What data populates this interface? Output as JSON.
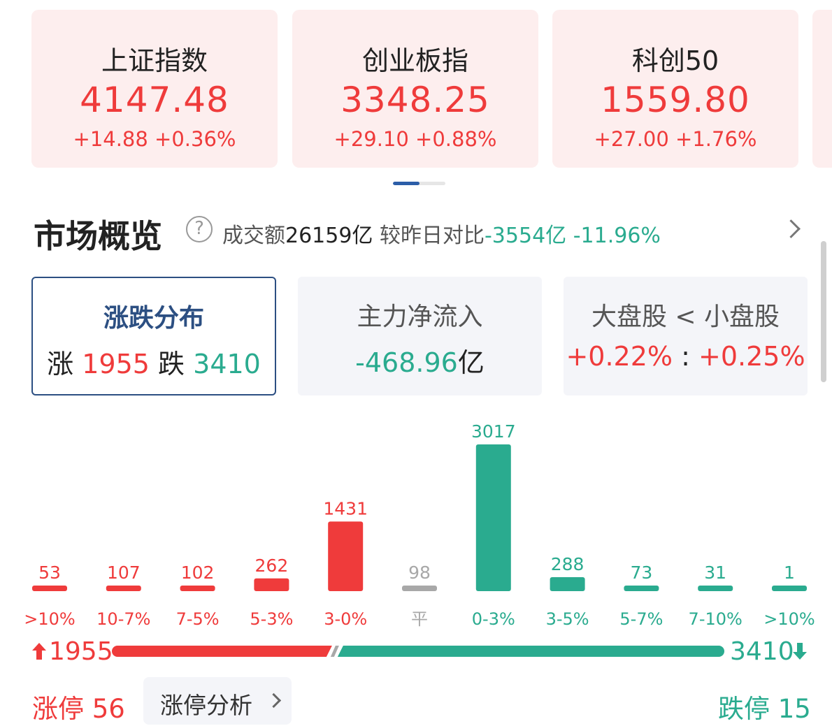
{
  "indices": [
    {
      "name": "上证指数",
      "price": "4147.48",
      "change": "+14.88 +0.36%"
    },
    {
      "name": "创业板指",
      "price": "3348.25",
      "change": "+29.10 +0.88%"
    },
    {
      "name": "科创50",
      "price": "1559.80",
      "change": "+27.00 +1.76%"
    }
  ],
  "overview": {
    "title": "市场概览",
    "help_icon": "?",
    "turnover_label": "成交额",
    "turnover_value": "26159亿",
    "compare_label": "较昨日对比",
    "compare_value": "-3554亿",
    "compare_pct": "-11.96%"
  },
  "tabs": {
    "distribution": {
      "title": "涨跌分布",
      "up_label": "涨",
      "up_value": "1955",
      "down_label": "跌",
      "down_value": "3410"
    },
    "main_flow": {
      "title": "主力净流入",
      "value": "-468.96",
      "unit": "亿"
    },
    "cap_compare": {
      "title": "大盘股 < 小盘股",
      "large_pct": "+0.22%",
      "sep": ":",
      "small_pct": "+0.25%"
    }
  },
  "chart_data": {
    "type": "bar",
    "categories": [
      ">10%",
      "10-7%",
      "7-5%",
      "5-3%",
      "3-0%",
      "平",
      "0-3%",
      "3-5%",
      "5-7%",
      "7-10%",
      ">10%"
    ],
    "values": [
      53,
      107,
      102,
      262,
      1431,
      98,
      3017,
      288,
      73,
      31,
      1
    ],
    "colors": [
      "#ef3b3b",
      "#ef3b3b",
      "#ef3b3b",
      "#ef3b3b",
      "#ef3b3b",
      "#a8a8a8",
      "#2aab8f",
      "#2aab8f",
      "#2aab8f",
      "#2aab8f",
      "#2aab8f"
    ],
    "ylim": [
      0,
      3017
    ]
  },
  "summary": {
    "up_total": "1955",
    "down_total": "3410",
    "up_share": 0.364
  },
  "bottom": {
    "limit_up": "涨停 56",
    "analysis": "涨停分析",
    "limit_down": "跌停 15"
  },
  "colors": {
    "up": "#ef3b3b",
    "down": "#2aab8f",
    "flat": "#a8a8a8",
    "accent": "#2c4f82"
  }
}
